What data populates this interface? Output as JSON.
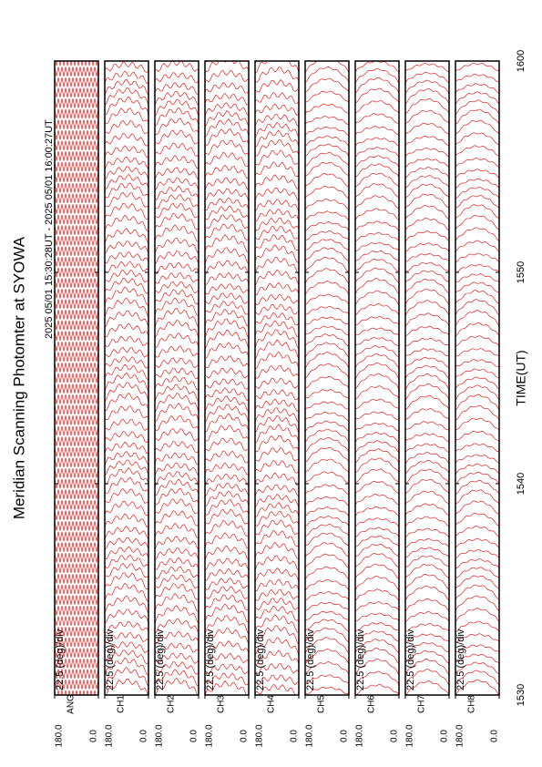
{
  "chart_data": {
    "type": "msp",
    "title": "Meridian Scanning Photomter at SYOWA",
    "subtitle": "2025 05/01 15:30:28UT - 2025 05/01 16:00:27UT",
    "xlabel": "TIME(UT)",
    "xlim": [
      930,
      960
    ],
    "xticks": [
      {
        "value": 930,
        "label": "1530"
      },
      {
        "value": 940,
        "label": "1540"
      },
      {
        "value": 950,
        "label": "1550"
      },
      {
        "value": 960,
        "label": "1600"
      }
    ],
    "color": "#e00000",
    "panels": [
      {
        "name": "ANG",
        "scale_label": "22.5 (deg)/div",
        "ylim": [
          0,
          180
        ],
        "yticks": [
          {
            "value": 180,
            "label": "180.0"
          },
          {
            "value": 0,
            "label": "0.0"
          }
        ]
      },
      {
        "name": "CH1",
        "scale_label": "22.5 (deg)/div",
        "ylim": [
          0,
          180
        ],
        "yticks": [
          {
            "value": 180,
            "label": "180.0"
          },
          {
            "value": 0,
            "label": "0.0"
          }
        ]
      },
      {
        "name": "CH2",
        "scale_label": "22.5 (deg)/div",
        "ylim": [
          0,
          180
        ],
        "yticks": [
          {
            "value": 180,
            "label": "180.0"
          },
          {
            "value": 0,
            "label": "0.0"
          }
        ]
      },
      {
        "name": "CH3",
        "scale_label": "22.5 (deg)/div",
        "ylim": [
          0,
          180
        ],
        "yticks": [
          {
            "value": 180,
            "label": "180.0"
          },
          {
            "value": 0,
            "label": "0.0"
          }
        ]
      },
      {
        "name": "CH4",
        "scale_label": "22.5 (deg)/div",
        "ylim": [
          0,
          180
        ],
        "yticks": [
          {
            "value": 180,
            "label": "180.0"
          },
          {
            "value": 0,
            "label": "0.0"
          }
        ]
      },
      {
        "name": "CH5",
        "scale_label": "22.5 (deg)/div",
        "ylim": [
          0,
          180
        ],
        "yticks": [
          {
            "value": 180,
            "label": "180.0"
          },
          {
            "value": 0,
            "label": "0.0"
          }
        ]
      },
      {
        "name": "CH6",
        "scale_label": "22.5 (deg)/div",
        "ylim": [
          0,
          180
        ],
        "yticks": [
          {
            "value": 180,
            "label": "180.0"
          },
          {
            "value": 0,
            "label": "0.0"
          }
        ]
      },
      {
        "name": "CH7",
        "scale_label": "22.5 (deg)/div",
        "ylim": [
          0,
          180
        ],
        "yticks": [
          {
            "value": 180,
            "label": "180.0"
          },
          {
            "value": 0,
            "label": "0.0"
          }
        ]
      },
      {
        "name": "CH8",
        "scale_label": "22.5 (deg)/div",
        "ylim": [
          0,
          180
        ],
        "yticks": [
          {
            "value": 180,
            "label": "180.0"
          },
          {
            "value": 0,
            "label": "0.0"
          }
        ]
      }
    ]
  }
}
